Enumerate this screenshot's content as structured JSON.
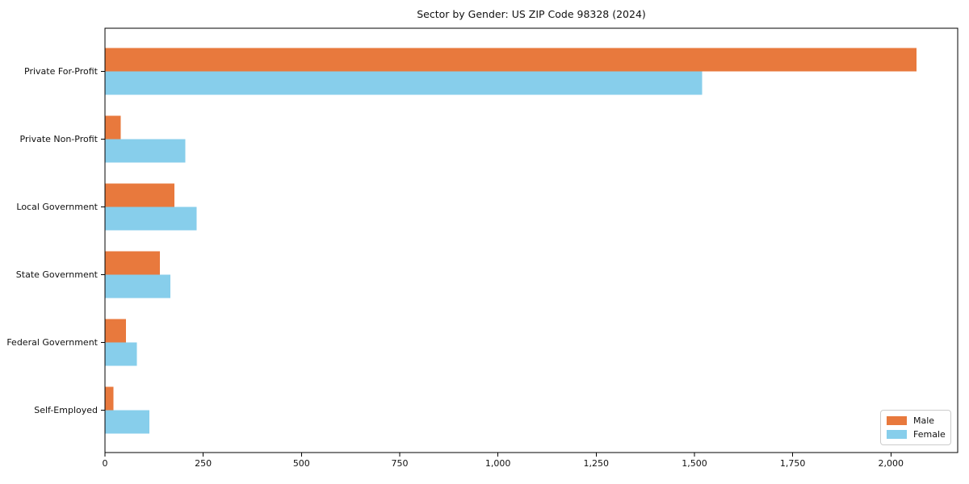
{
  "chart_data": {
    "type": "bar",
    "orientation": "horizontal",
    "title": "Sector by Gender: US ZIP Code 98328 (2024)",
    "categories": [
      "Private For-Profit",
      "Private Non-Profit",
      "Local Government",
      "State Government",
      "Federal Government",
      "Self-Employed"
    ],
    "series": [
      {
        "name": "Male",
        "color": "#e8793d",
        "values": [
          2065,
          40,
          177,
          140,
          53,
          22
        ]
      },
      {
        "name": "Female",
        "color": "#87ceeb",
        "values": [
          1520,
          204,
          233,
          166,
          81,
          113
        ]
      }
    ],
    "xlabel": "",
    "ylabel": "",
    "xlim": [
      0,
      2170
    ],
    "xticks": [
      0,
      250,
      500,
      750,
      1000,
      1250,
      1500,
      1750,
      2000
    ],
    "xtick_labels": [
      "0",
      "250",
      "500",
      "750",
      "1,000",
      "1,250",
      "1,500",
      "1,750",
      "2,000"
    ],
    "grid": false,
    "legend_position": "lower right",
    "spine_color": "#000000",
    "background": "#ffffff"
  }
}
